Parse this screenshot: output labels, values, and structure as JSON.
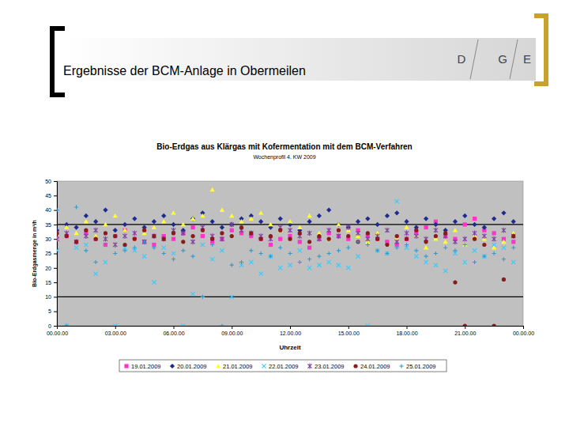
{
  "slide": {
    "title": "Ergebnisse der BCM-Anlage in Obermeilen",
    "logo": [
      "D",
      "G",
      "E"
    ]
  },
  "chart_data": {
    "type": "scatter",
    "title": "Bio-Erdgas aus Klärgas mit Kofermentation mit dem BCM-Verfahren",
    "subtitle": "Wochenprofil 4. KW 2009",
    "x_label": "Uhrzeit",
    "y_label": "Bio-Erdgasmenge in m³/h",
    "xlim": [
      0,
      24
    ],
    "ylim": [
      0,
      50
    ],
    "xticks": [
      {
        "value": 0,
        "label": "00.00.00"
      },
      {
        "value": 3,
        "label": "03.00.00"
      },
      {
        "value": 6,
        "label": "06.00.00"
      },
      {
        "value": 9,
        "label": "09.00.00"
      },
      {
        "value": 12,
        "label": "12.00.00"
      },
      {
        "value": 15,
        "label": "15.00.00"
      },
      {
        "value": 18,
        "label": "18.00.00"
      },
      {
        "value": 21,
        "label": "21.00.00"
      },
      {
        "value": 24,
        "label": "00.00.00"
      }
    ],
    "yticks": [
      0,
      5,
      10,
      15,
      20,
      25,
      30,
      35,
      40,
      45,
      50
    ],
    "grid": false,
    "legend": "bottom",
    "reference_lines": [
      10,
      35
    ],
    "x": [
      0,
      0.5,
      1,
      1.5,
      2,
      2.5,
      3,
      3.5,
      4,
      4.5,
      5,
      5.5,
      6,
      6.5,
      7,
      7.5,
      8,
      8.5,
      9,
      9.5,
      10,
      10.5,
      11,
      11.5,
      12,
      12.5,
      13,
      13.5,
      14,
      14.5,
      15,
      15.5,
      16,
      16.5,
      17,
      17.5,
      18,
      18.5,
      19,
      19.5,
      20,
      20.5,
      21,
      21.5,
      22,
      22.5,
      23,
      23.5
    ],
    "series": [
      {
        "name": "19.01.2009",
        "color": "#ff33cc",
        "marker": "square",
        "values": [
          30,
          31,
          29,
          32,
          30,
          28,
          31,
          33,
          30,
          29,
          28,
          31,
          30,
          32,
          34,
          31,
          29,
          30,
          33,
          32,
          31,
          30,
          28,
          30,
          31,
          29,
          27,
          30,
          32,
          31,
          30,
          33,
          31,
          30,
          29,
          28,
          30,
          32,
          34,
          36,
          31,
          30,
          35,
          37,
          33,
          32,
          30,
          29
        ]
      },
      {
        "name": "20.01.2009",
        "color": "#1f2a8f",
        "marker": "diamond",
        "values": [
          33,
          35,
          34,
          38,
          36,
          40,
          33,
          35,
          37,
          34,
          36,
          38,
          35,
          33,
          37,
          39,
          36,
          34,
          35,
          37,
          38,
          36,
          34,
          37,
          35,
          33,
          36,
          38,
          40,
          35,
          34,
          36,
          37,
          35,
          38,
          39,
          36,
          34,
          37,
          35,
          33,
          36,
          38,
          35,
          34,
          37,
          39,
          36
        ]
      },
      {
        "name": "21.01.2009",
        "color": "#ffff33",
        "marker": "triangle",
        "values": [
          30,
          34,
          32,
          36,
          31,
          35,
          38,
          33,
          30,
          32,
          34,
          36,
          39,
          35,
          37,
          38,
          47,
          40,
          38,
          36,
          37,
          39,
          35,
          33,
          36,
          34,
          38,
          32,
          30,
          35,
          33,
          31,
          29,
          32,
          28,
          30,
          34,
          31,
          27,
          30,
          29,
          33,
          28,
          31,
          30,
          27,
          29,
          32
        ]
      },
      {
        "name": "22.01.2009",
        "color": "#33ccff",
        "marker": "x",
        "values": [
          26,
          0,
          27,
          28,
          18,
          22,
          0,
          27,
          26,
          24,
          15,
          27,
          25,
          0,
          11,
          28,
          23,
          26,
          10,
          21,
          22,
          18,
          24,
          20,
          21,
          26,
          20,
          21,
          22,
          21,
          20,
          24,
          0,
          26,
          25,
          43,
          27,
          24,
          22,
          21,
          19,
          25,
          22,
          26,
          24,
          28,
          27,
          22
        ]
      },
      {
        "name": "23.01.2009",
        "color": "#7f3f9f",
        "marker": "star",
        "values": [
          30,
          32,
          29,
          31,
          33,
          30,
          28,
          31,
          32,
          29,
          31,
          30,
          33,
          32,
          29,
          34,
          31,
          30,
          35,
          33,
          32,
          31,
          30,
          34,
          33,
          31,
          32,
          30,
          33,
          31,
          34,
          32,
          30,
          31,
          33,
          29,
          32,
          31,
          30,
          33,
          31,
          29,
          30,
          32,
          31,
          30,
          33,
          31
        ]
      },
      {
        "name": "24.01.2009",
        "color": "#8b1a1a",
        "marker": "circle",
        "values": [
          32,
          31,
          29,
          33,
          30,
          32,
          31,
          28,
          30,
          33,
          31,
          30,
          32,
          29,
          31,
          33,
          30,
          32,
          31,
          34,
          32,
          30,
          31,
          33,
          30,
          32,
          29,
          31,
          30,
          33,
          31,
          29,
          32,
          30,
          28,
          31,
          30,
          33,
          29,
          31,
          32,
          15,
          0,
          30,
          28,
          0,
          16,
          31
        ]
      },
      {
        "name": "25.01.2009",
        "color": "#3399cc",
        "marker": "plus",
        "values": [
          40,
          0,
          41,
          26,
          22,
          28,
          25,
          26,
          27,
          29,
          27,
          25,
          23,
          26,
          24,
          10,
          28,
          0,
          21,
          22,
          26,
          25,
          24,
          27,
          25,
          22,
          23,
          24,
          25,
          26,
          27,
          29,
          28,
          26,
          25,
          27,
          28,
          26,
          24,
          25,
          27,
          26,
          28,
          22,
          24,
          25,
          23,
          27
        ]
      }
    ]
  }
}
